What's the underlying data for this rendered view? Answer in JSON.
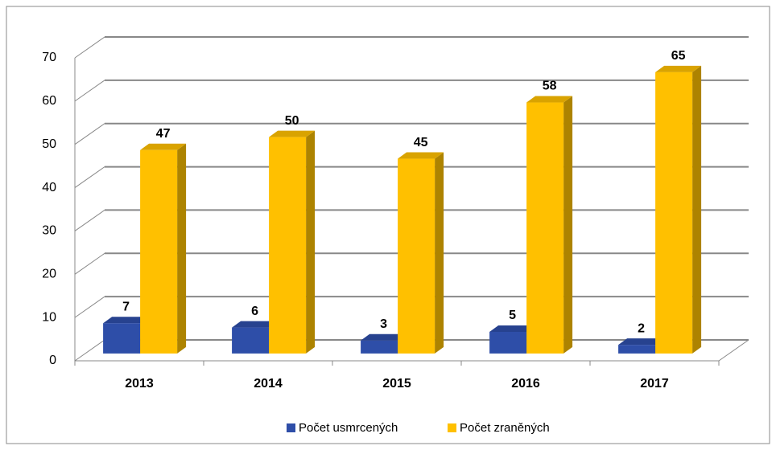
{
  "chart_data": {
    "type": "bar3d",
    "categories": [
      "2013",
      "2014",
      "2015",
      "2016",
      "2017"
    ],
    "series": [
      {
        "name": "Počet usmrcených",
        "color": "#2E4EA8",
        "values": [
          7,
          6,
          3,
          5,
          2
        ]
      },
      {
        "name": "Počet zraněných",
        "color": "#FFC000",
        "values": [
          47,
          50,
          45,
          58,
          65
        ]
      }
    ],
    "ylim": [
      0,
      70
    ],
    "yticks": [
      0,
      10,
      20,
      30,
      40,
      50,
      60,
      70
    ],
    "grid": true,
    "legend": "bottom"
  }
}
